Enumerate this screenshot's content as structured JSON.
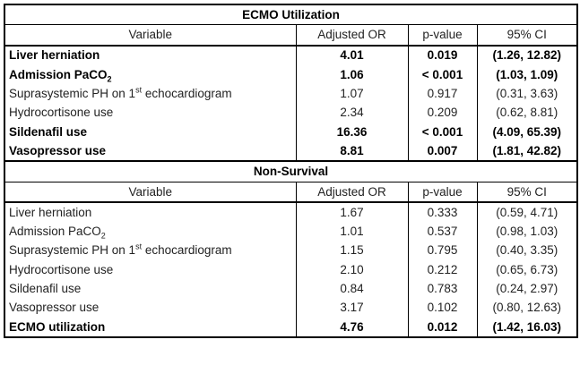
{
  "sections": [
    {
      "title": "ECMO Utilization",
      "headers": [
        "Variable",
        "Adjusted OR",
        "p-value",
        "95% CI"
      ],
      "rows": [
        {
          "bold": true,
          "v_pre": "Liver herniation",
          "v_mid": "",
          "v_post": "",
          "mid_type": "",
          "or": "4.01",
          "p": "0.019",
          "ci": "(1.26, 12.82)"
        },
        {
          "bold": true,
          "v_pre": "Admission PaCO",
          "v_mid": "2",
          "v_post": "",
          "mid_type": "sub",
          "or": "1.06",
          "p": "< 0.001",
          "ci": "(1.03, 1.09)"
        },
        {
          "bold": false,
          "v_pre": "Suprasystemic PH on 1",
          "v_mid": "st",
          "v_post": " echocardiogram",
          "mid_type": "sup",
          "or": "1.07",
          "p": "0.917",
          "ci": "(0.31, 3.63)"
        },
        {
          "bold": false,
          "v_pre": "Hydrocortisone use",
          "v_mid": "",
          "v_post": "",
          "mid_type": "",
          "or": "2.34",
          "p": "0.209",
          "ci": "(0.62, 8.81)"
        },
        {
          "bold": true,
          "v_pre": "Sildenafil use",
          "v_mid": "",
          "v_post": "",
          "mid_type": "",
          "or": "16.36",
          "p": "< 0.001",
          "ci": "(4.09, 65.39)"
        },
        {
          "bold": true,
          "v_pre": "Vasopressor use",
          "v_mid": "",
          "v_post": "",
          "mid_type": "",
          "or": "8.81",
          "p": "0.007",
          "ci": "(1.81, 42.82)"
        }
      ]
    },
    {
      "title": "Non-Survival",
      "headers": [
        "Variable",
        "Adjusted OR",
        "p-value",
        "95% CI"
      ],
      "rows": [
        {
          "bold": false,
          "v_pre": "Liver herniation",
          "v_mid": "",
          "v_post": "",
          "mid_type": "",
          "or": "1.67",
          "p": "0.333",
          "ci": "(0.59, 4.71)"
        },
        {
          "bold": false,
          "v_pre": "Admission PaCO",
          "v_mid": "2",
          "v_post": "",
          "mid_type": "sub",
          "or": "1.01",
          "p": "0.537",
          "ci": "(0.98, 1.03)"
        },
        {
          "bold": false,
          "v_pre": "Suprasystemic PH on 1",
          "v_mid": "st",
          "v_post": " echocardiogram",
          "mid_type": "sup",
          "or": "1.15",
          "p": "0.795",
          "ci": "(0.40, 3.35)"
        },
        {
          "bold": false,
          "v_pre": "Hydrocortisone use",
          "v_mid": "",
          "v_post": "",
          "mid_type": "",
          "or": "2.10",
          "p": "0.212",
          "ci": "(0.65, 6.73)"
        },
        {
          "bold": false,
          "v_pre": "Sildenafil use",
          "v_mid": "",
          "v_post": "",
          "mid_type": "",
          "or": "0.84",
          "p": "0.783",
          "ci": "(0.24, 2.97)"
        },
        {
          "bold": false,
          "v_pre": "Vasopressor use",
          "v_mid": "",
          "v_post": "",
          "mid_type": "",
          "or": "3.17",
          "p": "0.102",
          "ci": "(0.80, 12.63)"
        },
        {
          "bold": true,
          "v_pre": "ECMO utilization",
          "v_mid": "",
          "v_post": "",
          "mid_type": "",
          "or": "4.76",
          "p": "0.012",
          "ci": "(1.42, 16.03)"
        }
      ]
    }
  ]
}
